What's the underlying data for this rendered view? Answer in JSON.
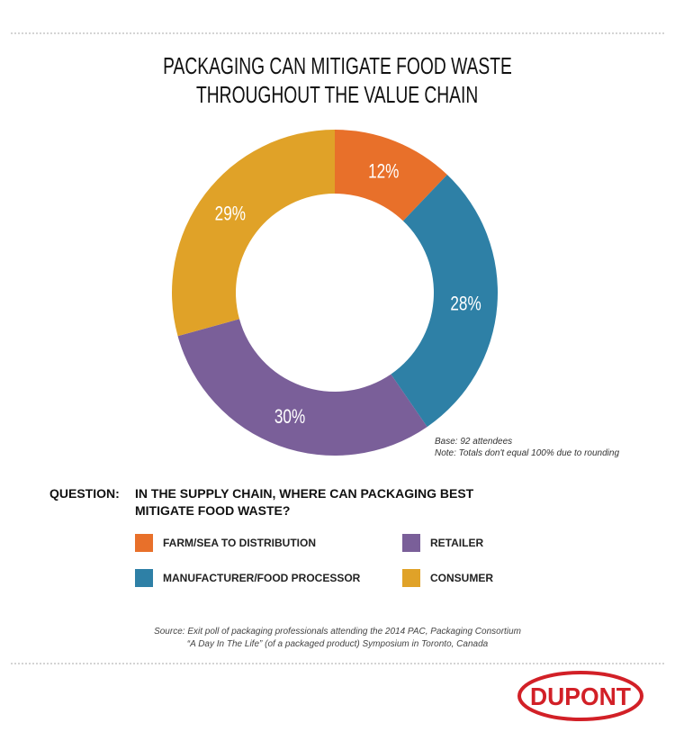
{
  "title": [
    "PACKAGING CAN MITIGATE FOOD WASTE",
    "THROUGHOUT THE VALUE CHAIN"
  ],
  "chart_data": {
    "type": "donut",
    "categories": [
      "FARM/SEA TO DISTRIBUTION",
      "MANUFACTURER/FOOD PROCESSOR",
      "RETAILER",
      "CONSUMER"
    ],
    "values": [
      12,
      28,
      30,
      29
    ],
    "value_labels": [
      "12%",
      "28%",
      "30%",
      "29%"
    ],
    "colors": [
      "#e8702a",
      "#2e80a6",
      "#7a5f99",
      "#e0a228"
    ]
  },
  "notes": [
    "Base: 92 attendees",
    "Note: Totals don't equal 100% due to rounding"
  ],
  "question": {
    "label": "QUESTION:",
    "lines": [
      "IN THE SUPPLY CHAIN, WHERE CAN PACKAGING BEST",
      "MITIGATE FOOD WASTE?"
    ]
  },
  "source": [
    "Source: Exit poll of packaging professionals attending the 2014 PAC, Packaging Consortium",
    "“A Day In The Life” (of a packaged product) Symposium in Toronto, Canada"
  ],
  "logo": "DUPONT"
}
